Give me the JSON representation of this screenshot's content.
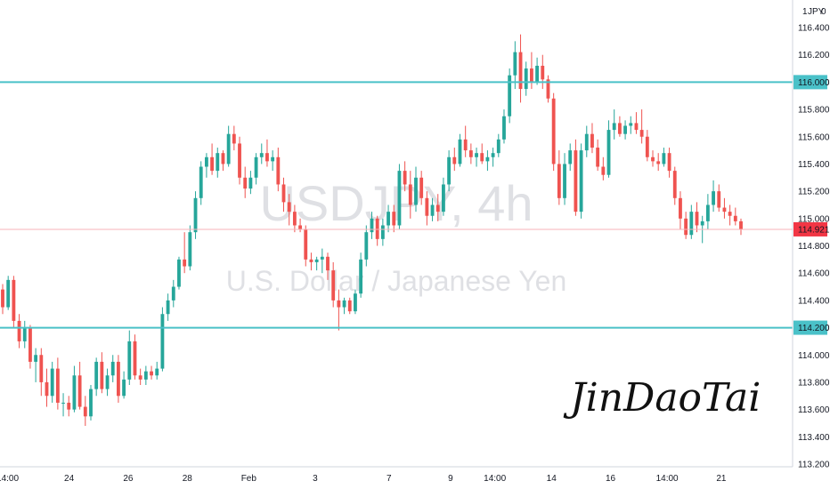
{
  "chart_data": {
    "type": "candlestick",
    "watermark": {
      "symbol": "USDJPY, 4h",
      "name": "U.S. Dollar / Japanese Yen"
    },
    "currency_label": "JPY",
    "currency_badge": "1",
    "currency_extra": "0",
    "signature": "JinDaoTai",
    "ylim": [
      113.2,
      116.55
    ],
    "y_ticks": [
      "113.200",
      "113.400",
      "113.600",
      "113.800",
      "114.000",
      "114.200",
      "114.400",
      "114.600",
      "114.800",
      "115.000",
      "115.200",
      "115.400",
      "115.600",
      "115.800",
      "116.000",
      "116.200",
      "116.400"
    ],
    "x_ticks": [
      "14:00",
      "24",
      "26",
      "28",
      "Feb",
      "3",
      "7",
      "9",
      "14:00",
      "14",
      "16",
      "14:00",
      "21"
    ],
    "horizontal_lines": [
      {
        "value": 116.0,
        "label": "116.000",
        "color": "#4ac1c8"
      },
      {
        "value": 114.2,
        "label": "114.200",
        "color": "#4ac1c8"
      }
    ],
    "last_price": {
      "value": 114.921,
      "label": "114.921",
      "color": "#f23645"
    },
    "candles": [
      [
        114.48,
        114.52,
        114.3,
        114.35
      ],
      [
        114.35,
        114.58,
        114.33,
        114.55
      ],
      [
        114.55,
        114.58,
        114.2,
        114.25
      ],
      [
        114.25,
        114.3,
        114.05,
        114.1
      ],
      [
        114.1,
        114.25,
        114.05,
        114.2
      ],
      [
        114.2,
        114.22,
        113.9,
        113.95
      ],
      [
        113.95,
        114.05,
        113.8,
        114.0
      ],
      [
        114.0,
        114.05,
        113.7,
        113.8
      ],
      [
        113.8,
        113.9,
        113.62,
        113.7
      ],
      [
        113.7,
        113.95,
        113.65,
        113.9
      ],
      [
        113.9,
        113.98,
        113.6,
        113.65
      ],
      [
        113.65,
        113.72,
        113.55,
        113.65
      ],
      [
        113.65,
        113.7,
        113.55,
        113.6
      ],
      [
        113.6,
        113.92,
        113.58,
        113.85
      ],
      [
        113.85,
        113.95,
        113.6,
        113.62
      ],
      [
        113.62,
        113.7,
        113.48,
        113.55
      ],
      [
        113.55,
        113.78,
        113.52,
        113.75
      ],
      [
        113.75,
        113.98,
        113.7,
        113.95
      ],
      [
        113.95,
        114.02,
        113.72,
        113.75
      ],
      [
        113.75,
        113.9,
        113.7,
        113.85
      ],
      [
        113.85,
        114.0,
        113.8,
        113.95
      ],
      [
        113.95,
        114.0,
        113.65,
        113.7
      ],
      [
        113.7,
        113.88,
        113.68,
        113.82
      ],
      [
        113.82,
        114.18,
        113.78,
        114.1
      ],
      [
        114.1,
        114.15,
        113.82,
        113.85
      ],
      [
        113.85,
        113.9,
        113.78,
        113.82
      ],
      [
        113.82,
        113.92,
        113.78,
        113.88
      ],
      [
        113.88,
        113.92,
        113.82,
        113.85
      ],
      [
        113.85,
        113.95,
        113.82,
        113.9
      ],
      [
        113.9,
        114.35,
        113.88,
        114.3
      ],
      [
        114.3,
        114.45,
        114.25,
        114.4
      ],
      [
        114.4,
        114.55,
        114.35,
        114.5
      ],
      [
        114.5,
        114.72,
        114.48,
        114.7
      ],
      [
        114.7,
        114.9,
        114.6,
        114.65
      ],
      [
        114.65,
        114.95,
        114.62,
        114.9
      ],
      [
        114.9,
        115.2,
        114.85,
        115.15
      ],
      [
        115.15,
        115.42,
        115.1,
        115.38
      ],
      [
        115.38,
        115.48,
        115.3,
        115.45
      ],
      [
        115.45,
        115.55,
        115.32,
        115.35
      ],
      [
        115.35,
        115.52,
        115.3,
        115.48
      ],
      [
        115.48,
        115.5,
        115.35,
        115.4
      ],
      [
        115.4,
        115.68,
        115.38,
        115.62
      ],
      [
        115.62,
        115.68,
        115.5,
        115.55
      ],
      [
        115.55,
        115.6,
        115.25,
        115.3
      ],
      [
        115.3,
        115.38,
        115.15,
        115.22
      ],
      [
        115.22,
        115.35,
        115.18,
        115.3
      ],
      [
        115.3,
        115.48,
        115.25,
        115.45
      ],
      [
        115.45,
        115.55,
        115.4,
        115.48
      ],
      [
        115.48,
        115.58,
        115.38,
        115.42
      ],
      [
        115.42,
        115.5,
        115.35,
        115.45
      ],
      [
        115.45,
        115.52,
        115.2,
        115.25
      ],
      [
        115.25,
        115.3,
        115.05,
        115.12
      ],
      [
        115.12,
        115.18,
        114.95,
        115.05
      ],
      [
        115.05,
        115.1,
        114.9,
        114.95
      ],
      [
        114.95,
        115.0,
        114.9,
        114.92
      ],
      [
        114.92,
        114.95,
        114.65,
        114.7
      ],
      [
        114.7,
        114.75,
        114.62,
        114.68
      ],
      [
        114.68,
        114.72,
        114.62,
        114.7
      ],
      [
        114.7,
        114.78,
        114.6,
        114.72
      ],
      [
        114.72,
        114.75,
        114.55,
        114.62
      ],
      [
        114.62,
        114.68,
        114.35,
        114.4
      ],
      [
        114.4,
        114.48,
        114.18,
        114.35
      ],
      [
        114.35,
        114.42,
        114.3,
        114.4
      ],
      [
        114.4,
        114.42,
        114.3,
        114.32
      ],
      [
        114.32,
        114.48,
        114.3,
        114.45
      ],
      [
        114.45,
        114.75,
        114.42,
        114.7
      ],
      [
        114.7,
        114.95,
        114.65,
        114.9
      ],
      [
        114.9,
        115.05,
        114.85,
        115.0
      ],
      [
        115.0,
        115.02,
        114.8,
        114.85
      ],
      [
        114.85,
        115.0,
        114.8,
        114.95
      ],
      [
        114.95,
        115.1,
        114.9,
        115.05
      ],
      [
        115.05,
        115.1,
        114.9,
        114.95
      ],
      [
        114.95,
        115.4,
        114.92,
        115.35
      ],
      [
        115.35,
        115.42,
        115.2,
        115.25
      ],
      [
        115.25,
        115.35,
        115.0,
        115.1
      ],
      [
        115.1,
        115.38,
        115.05,
        115.3
      ],
      [
        115.3,
        115.35,
        115.1,
        115.15
      ],
      [
        115.15,
        115.2,
        114.95,
        115.02
      ],
      [
        115.02,
        115.15,
        114.98,
        115.1
      ],
      [
        115.1,
        115.18,
        114.98,
        115.05
      ],
      [
        115.05,
        115.3,
        115.02,
        115.25
      ],
      [
        115.25,
        115.5,
        115.2,
        115.45
      ],
      [
        115.45,
        115.52,
        115.35,
        115.4
      ],
      [
        115.4,
        115.62,
        115.38,
        115.58
      ],
      [
        115.58,
        115.68,
        115.45,
        115.5
      ],
      [
        115.5,
        115.55,
        115.4,
        115.45
      ],
      [
        115.45,
        115.52,
        115.38,
        115.48
      ],
      [
        115.48,
        115.55,
        115.4,
        115.42
      ],
      [
        115.42,
        115.5,
        115.35,
        115.45
      ],
      [
        115.45,
        115.52,
        115.38,
        115.48
      ],
      [
        115.48,
        115.62,
        115.45,
        115.58
      ],
      [
        115.58,
        115.8,
        115.55,
        115.75
      ],
      [
        115.75,
        116.1,
        115.7,
        116.05
      ],
      [
        116.05,
        116.3,
        115.95,
        116.22
      ],
      [
        116.22,
        116.35,
        115.85,
        115.95
      ],
      [
        115.95,
        116.15,
        115.9,
        116.1
      ],
      [
        116.1,
        116.22,
        115.95,
        116.0
      ],
      [
        116.0,
        116.18,
        115.98,
        116.12
      ],
      [
        116.12,
        116.2,
        115.95,
        116.02
      ],
      [
        116.02,
        116.05,
        115.85,
        115.88
      ],
      [
        115.88,
        115.92,
        115.35,
        115.4
      ],
      [
        115.4,
        115.5,
        115.1,
        115.15
      ],
      [
        115.15,
        115.48,
        115.1,
        115.4
      ],
      [
        115.4,
        115.55,
        115.35,
        115.5
      ],
      [
        115.5,
        115.58,
        115.02,
        115.05
      ],
      [
        115.05,
        115.55,
        115.0,
        115.5
      ],
      [
        115.5,
        115.68,
        115.45,
        115.62
      ],
      [
        115.62,
        115.7,
        115.48,
        115.52
      ],
      [
        115.52,
        115.58,
        115.35,
        115.38
      ],
      [
        115.38,
        115.45,
        115.28,
        115.32
      ],
      [
        115.32,
        115.72,
        115.3,
        115.65
      ],
      [
        115.65,
        115.8,
        115.58,
        115.7
      ],
      [
        115.7,
        115.75,
        115.6,
        115.62
      ],
      [
        115.62,
        115.72,
        115.58,
        115.68
      ],
      [
        115.68,
        115.75,
        115.62,
        115.7
      ],
      [
        115.7,
        115.78,
        115.62,
        115.65
      ],
      [
        115.65,
        115.8,
        115.55,
        115.6
      ],
      [
        115.6,
        115.65,
        115.42,
        115.45
      ],
      [
        115.45,
        115.5,
        115.38,
        115.42
      ],
      [
        115.42,
        115.48,
        115.35,
        115.4
      ],
      [
        115.4,
        115.52,
        115.38,
        115.48
      ],
      [
        115.48,
        115.52,
        115.3,
        115.35
      ],
      [
        115.35,
        115.38,
        115.1,
        115.15
      ],
      [
        115.15,
        115.2,
        114.92,
        115.0
      ],
      [
        115.0,
        115.05,
        114.85,
        114.88
      ],
      [
        114.88,
        115.1,
        114.85,
        115.05
      ],
      [
        115.05,
        115.12,
        114.9,
        114.95
      ],
      [
        114.95,
        115.02,
        114.82,
        114.98
      ],
      [
        114.98,
        115.18,
        114.92,
        115.1
      ],
      [
        115.1,
        115.28,
        115.05,
        115.2
      ],
      [
        115.2,
        115.25,
        115.05,
        115.08
      ],
      [
        115.08,
        115.15,
        115.0,
        115.05
      ],
      [
        115.05,
        115.1,
        114.95,
        115.02
      ],
      [
        115.02,
        115.08,
        114.95,
        114.98
      ],
      [
        114.98,
        115.0,
        114.88,
        114.92
      ]
    ]
  }
}
